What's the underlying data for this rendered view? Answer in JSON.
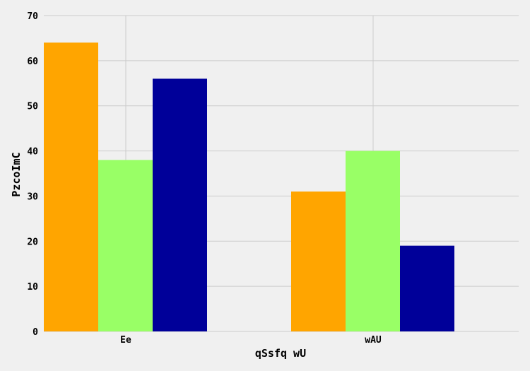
{
  "chart_data": {
    "type": "bar",
    "title": "",
    "xlabel": "qSsfq wU",
    "ylabel": "PzcoImC",
    "categories": [
      "Ee",
      "wAU"
    ],
    "series": [
      {
        "values": [
          64,
          31
        ],
        "color": "#ffa500"
      },
      {
        "values": [
          38,
          40
        ],
        "color": "#99ff66"
      },
      {
        "values": [
          56,
          19
        ],
        "color": "#000099"
      }
    ],
    "ylim": [
      0,
      70
    ],
    "yticks": [
      0,
      10,
      20,
      30,
      40,
      50,
      60,
      70
    ],
    "grid": true,
    "legend": "none"
  },
  "style": {
    "background": "#f0f0f0",
    "grid_color": "#cbcbcb"
  }
}
